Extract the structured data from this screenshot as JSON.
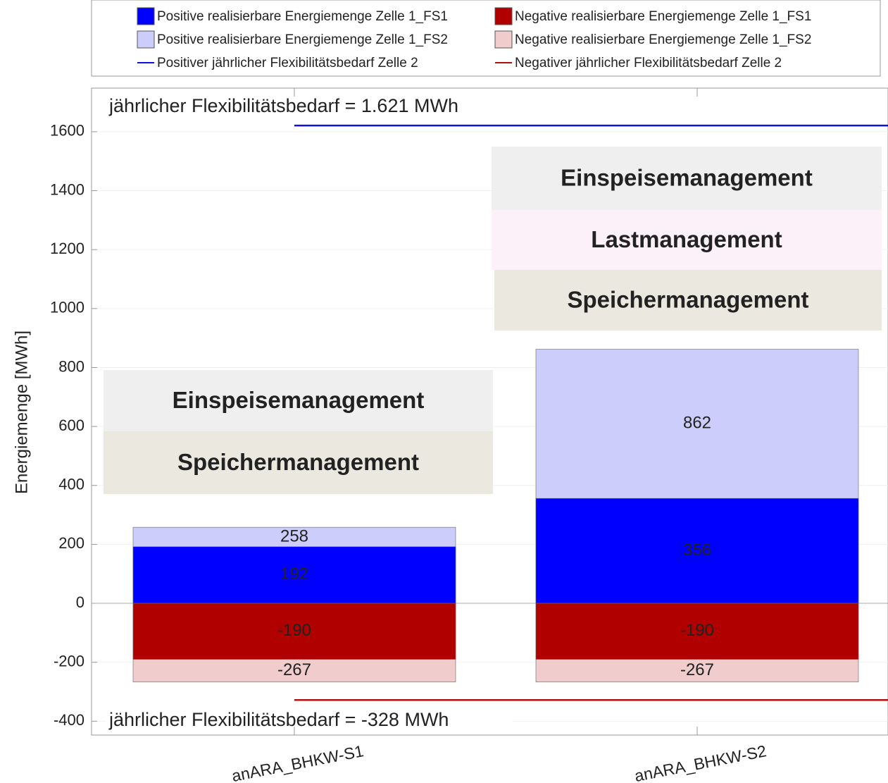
{
  "chart_data": {
    "type": "bar",
    "overlap": true,
    "y_axis_label": "Energiemenge [MWh]",
    "categories": [
      "anARA_BHKW-S1",
      "anARA_BHKW-S2"
    ],
    "series": [
      {
        "name": "Positive realisierbare Energiemenge Zelle 1_FS1",
        "color": "#0000ff",
        "values": [
          192,
          356
        ]
      },
      {
        "name": "Negative realisierbare Energiemenge Zelle 1_FS1",
        "color": "#b00000",
        "values": [
          -190,
          -190
        ]
      },
      {
        "name": "Positive realisierbare Energiemenge Zelle 1_FS2",
        "color": "#cccdfa",
        "values": [
          258,
          862
        ]
      },
      {
        "name": "Negative realisierbare Energiemenge Zelle 1_FS2",
        "color": "#f0cccc",
        "values": [
          -267,
          -267
        ]
      }
    ],
    "reference_lines": [
      {
        "name": "Positiver jährlicher Flexibilitätsbedarf Zelle 2",
        "color": "#1010dd",
        "value": 1621,
        "label": "jährlicher Flexibilitätsbedarf  = 1.621 MWh"
      },
      {
        "name": "Negativer jährlicher Flexibilitätsbedarf Zelle 2",
        "color": "#b01010",
        "value": -328,
        "label": "jährlicher Flexibilitätsbedarf  =  -328 MWh"
      }
    ],
    "annotations": [
      [
        "Einspeisemanagement",
        "Speichermanagement"
      ],
      [
        "Einspeisemanagement",
        "Lastmanagement",
        "Speichermanagement"
      ]
    ],
    "ylim": [
      -447,
      1748
    ],
    "yticks": [
      -400,
      -200,
      0,
      200,
      400,
      600,
      800,
      1000,
      1200,
      1400,
      1600
    ],
    "grid": true
  }
}
